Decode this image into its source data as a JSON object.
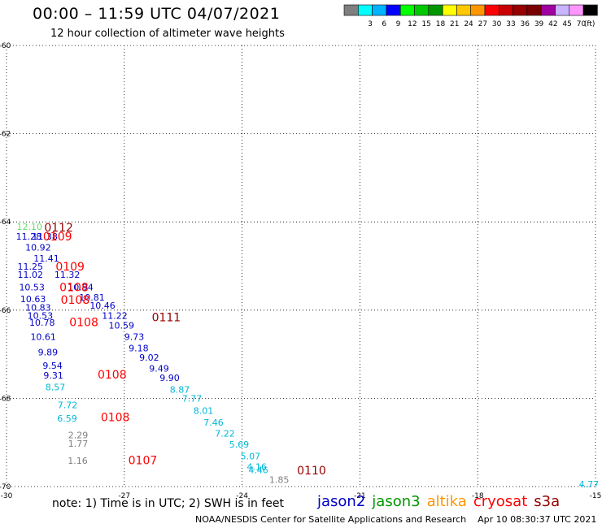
{
  "header": {
    "title": "00:00 – 11:59 UTC 04/07/2021",
    "subtitle": "12 hour collection of altimeter wave heights"
  },
  "colorbar": {
    "unit": "(ft)",
    "bins": [
      {
        "label": "",
        "color": "#7f7f7f"
      },
      {
        "label": "3",
        "color": "#00ffff"
      },
      {
        "label": "6",
        "color": "#00b4ff"
      },
      {
        "label": "9",
        "color": "#0000ff"
      },
      {
        "label": "12",
        "color": "#00ff00"
      },
      {
        "label": "15",
        "color": "#00c800"
      },
      {
        "label": "18",
        "color": "#009600"
      },
      {
        "label": "21",
        "color": "#ffff00"
      },
      {
        "label": "24",
        "color": "#ffc800"
      },
      {
        "label": "27",
        "color": "#ff9600"
      },
      {
        "label": "30",
        "color": "#ff0000"
      },
      {
        "label": "33",
        "color": "#c80000"
      },
      {
        "label": "36",
        "color": "#960000"
      },
      {
        "label": "39",
        "color": "#7a0000"
      },
      {
        "label": "42",
        "color": "#a000a0"
      },
      {
        "label": "45",
        "color": "#c8b4ff"
      },
      {
        "label": "70",
        "color": "#ff96ff"
      },
      {
        "label": "",
        "color": "#000000"
      }
    ]
  },
  "map": {
    "lon_range": [
      -30,
      -15
    ],
    "lat_range": [
      -70,
      -60
    ],
    "lon_ticks": [
      "-30",
      "-27",
      "-24",
      "-21",
      "-18",
      "-15"
    ],
    "lat_ticks": [
      "-60",
      "-62",
      "-64",
      "-66",
      "-68",
      "-70"
    ],
    "colors": {
      "jason2": "#0000c8",
      "jason3": "#009600",
      "altika": "#ff9600",
      "cryosat": "#ff0000",
      "s3a": "#960000",
      "cyan": "#00b8d8",
      "gray": "#808080",
      "lightgreen": "#66dd66"
    },
    "values": [
      {
        "text": "12.10",
        "lon": -29.74,
        "lat": -64.18,
        "series": "lightgreen"
      },
      {
        "text": "11.28",
        "lon": -29.76,
        "lat": -64.4,
        "series": "jason2"
      },
      {
        "text": "11.38",
        "lon": -29.35,
        "lat": -64.4,
        "series": "jason2"
      },
      {
        "text": "10.92",
        "lon": -29.52,
        "lat": -64.65,
        "series": "jason2"
      },
      {
        "text": "11.41",
        "lon": -29.31,
        "lat": -64.9,
        "series": "jason2"
      },
      {
        "text": "11.25",
        "lon": -29.72,
        "lat": -65.08,
        "series": "jason2"
      },
      {
        "text": "11.32",
        "lon": -28.78,
        "lat": -65.27,
        "series": "jason2"
      },
      {
        "text": "11.02",
        "lon": -29.72,
        "lat": -65.27,
        "series": "jason2"
      },
      {
        "text": "10.53",
        "lon": -29.68,
        "lat": -65.55,
        "series": "jason2"
      },
      {
        "text": "10.94",
        "lon": -28.44,
        "lat": -65.55,
        "series": "jason2"
      },
      {
        "text": "10.81",
        "lon": -28.15,
        "lat": -65.78,
        "series": "jason2"
      },
      {
        "text": "10.63",
        "lon": -29.65,
        "lat": -65.82,
        "series": "jason2"
      },
      {
        "text": "10.46",
        "lon": -27.88,
        "lat": -65.97,
        "series": "jason2"
      },
      {
        "text": "10.83",
        "lon": -29.52,
        "lat": -66.01,
        "series": "jason2"
      },
      {
        "text": "10.53",
        "lon": -29.47,
        "lat": -66.2,
        "series": "jason2"
      },
      {
        "text": "11.22",
        "lon": -27.57,
        "lat": -66.2,
        "series": "jason2"
      },
      {
        "text": "10.78",
        "lon": -29.42,
        "lat": -66.35,
        "series": "jason2"
      },
      {
        "text": "10.59",
        "lon": -27.4,
        "lat": -66.42,
        "series": "jason2"
      },
      {
        "text": "10.61",
        "lon": -29.39,
        "lat": -66.68,
        "series": "jason2"
      },
      {
        "text": "9.73",
        "lon": -27.0,
        "lat": -66.68,
        "series": "jason2"
      },
      {
        "text": "9.18",
        "lon": -26.89,
        "lat": -66.93,
        "series": "jason2"
      },
      {
        "text": "9.89",
        "lon": -29.2,
        "lat": -67.03,
        "series": "jason2"
      },
      {
        "text": "9.02",
        "lon": -26.62,
        "lat": -67.15,
        "series": "jason2"
      },
      {
        "text": "9.54",
        "lon": -29.08,
        "lat": -67.33,
        "series": "jason2"
      },
      {
        "text": "9.49",
        "lon": -26.37,
        "lat": -67.39,
        "series": "jason2"
      },
      {
        "text": "9.31",
        "lon": -29.06,
        "lat": -67.55,
        "series": "jason2"
      },
      {
        "text": "9.90",
        "lon": -26.1,
        "lat": -67.61,
        "series": "jason2"
      },
      {
        "text": "8.57",
        "lon": -29.01,
        "lat": -67.82,
        "series": "cyan"
      },
      {
        "text": "8.87",
        "lon": -25.84,
        "lat": -67.87,
        "series": "cyan"
      },
      {
        "text": "7.77",
        "lon": -25.53,
        "lat": -68.08,
        "series": "cyan"
      },
      {
        "text": "8.01",
        "lon": -25.24,
        "lat": -68.35,
        "series": "cyan"
      },
      {
        "text": "7.72",
        "lon": -28.7,
        "lat": -68.22,
        "series": "cyan"
      },
      {
        "text": "6.59",
        "lon": -28.71,
        "lat": -68.53,
        "series": "cyan"
      },
      {
        "text": "7.46",
        "lon": -24.98,
        "lat": -68.62,
        "series": "cyan"
      },
      {
        "text": "7.22",
        "lon": -24.69,
        "lat": -68.87,
        "series": "cyan"
      },
      {
        "text": "2.29",
        "lon": -28.43,
        "lat": -68.9,
        "series": "gray"
      },
      {
        "text": "1.77",
        "lon": -28.43,
        "lat": -69.1,
        "series": "gray"
      },
      {
        "text": "5.69",
        "lon": -24.33,
        "lat": -69.12,
        "series": "cyan"
      },
      {
        "text": "5.07",
        "lon": -24.04,
        "lat": -69.38,
        "series": "cyan"
      },
      {
        "text": "1.16",
        "lon": -28.44,
        "lat": -69.48,
        "series": "gray"
      },
      {
        "text": "4.16",
        "lon": -23.88,
        "lat": -69.62,
        "series": "cyan"
      },
      {
        "text": "4.46",
        "lon": -23.84,
        "lat": -69.7,
        "series": "cyan"
      },
      {
        "text": "1.85",
        "lon": -23.31,
        "lat": -69.92,
        "series": "gray"
      },
      {
        "text": "4.77",
        "lon": -15.42,
        "lat": -70.02,
        "series": "cyan"
      }
    ],
    "pass_labels": [
      {
        "text": "0112",
        "lon": -29.04,
        "lat": -64.22,
        "series": "s3a"
      },
      {
        "text": "0109",
        "lon": -29.07,
        "lat": -64.42,
        "series": "cryosat"
      },
      {
        "text": "0109",
        "lon": -28.75,
        "lat": -65.1,
        "series": "cryosat"
      },
      {
        "text": "0108",
        "lon": -28.65,
        "lat": -65.57,
        "series": "cryosat"
      },
      {
        "text": "0108",
        "lon": -28.62,
        "lat": -65.86,
        "series": "cryosat"
      },
      {
        "text": "0111",
        "lon": -26.3,
        "lat": -66.25,
        "series": "s3a"
      },
      {
        "text": "0108",
        "lon": -28.4,
        "lat": -66.36,
        "series": "cryosat"
      },
      {
        "text": "0108",
        "lon": -27.68,
        "lat": -67.55,
        "series": "cryosat"
      },
      {
        "text": "0108",
        "lon": -27.6,
        "lat": -68.52,
        "series": "cryosat"
      },
      {
        "text": "0107",
        "lon": -26.9,
        "lat": -69.49,
        "series": "cryosat"
      },
      {
        "text": "0110",
        "lon": -22.6,
        "lat": -69.72,
        "series": "s3a"
      }
    ]
  },
  "footer": {
    "note": "note: 1) Time is in UTC; 2) SWH is in feet",
    "satellites": [
      {
        "name": "jason2",
        "color": "#0000c8"
      },
      {
        "name": "jason3",
        "color": "#009600"
      },
      {
        "name": "altika",
        "color": "#ff9600"
      },
      {
        "name": "cryosat",
        "color": "#ff0000"
      },
      {
        "name": "s3a",
        "color": "#960000"
      }
    ],
    "credit": "NOAA/NESDIS Center for Satellite Applications and Research",
    "generated": "Apr 10 08:30:37 UTC 2021"
  }
}
